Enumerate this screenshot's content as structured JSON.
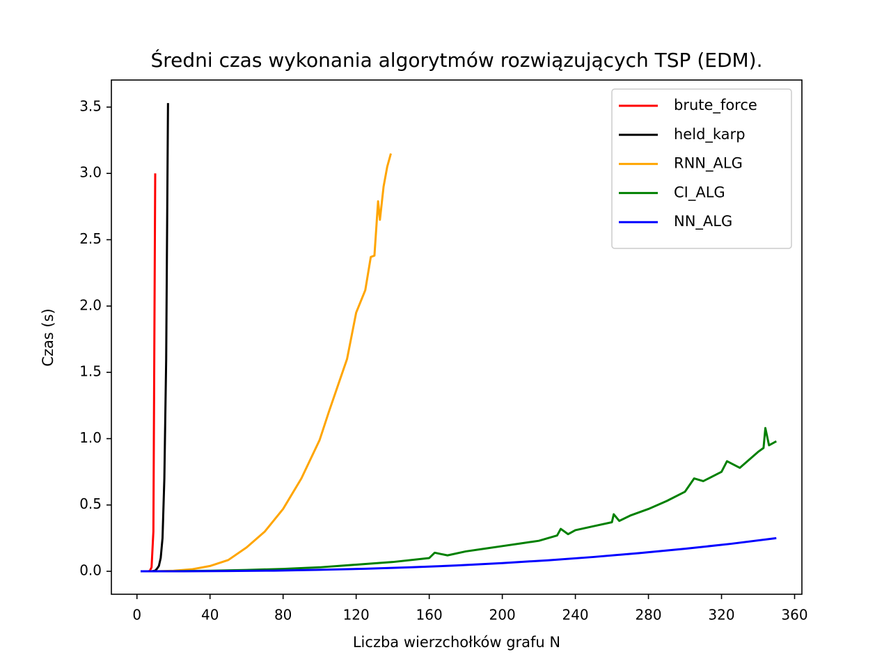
{
  "chart_data": {
    "type": "line",
    "title": "Średni czas wykonania algorytmów rozwiązujących TSP (EDM).",
    "xlabel": "Liczba wierzchołków grafu N",
    "ylabel": "Czas (s)",
    "xlim": [
      -14,
      364
    ],
    "ylim": [
      -0.173,
      3.704
    ],
    "xticks": [
      0,
      40,
      80,
      120,
      160,
      200,
      240,
      280,
      320,
      360
    ],
    "yticks": [
      {
        "value": 0,
        "label": "0.0"
      },
      0.5,
      {
        "value": 1,
        "label": "1.0"
      },
      1.5,
      {
        "value": 2,
        "label": "2.0"
      },
      2.5,
      {
        "value": 3,
        "label": "3.0"
      },
      3.5
    ],
    "legend": "upper right",
    "series": [
      {
        "name": "brute_force",
        "color": "#ff0000",
        "x": [
          2,
          3,
          4,
          5,
          6,
          7,
          8,
          9,
          10
        ],
        "values": [
          0,
          0,
          0,
          0,
          0,
          0.002,
          0.03,
          0.3,
          3.0
        ]
      },
      {
        "name": "held_karp",
        "color": "#000000",
        "x": [
          2,
          4,
          6,
          8,
          10,
          11,
          12,
          13,
          14,
          15,
          16,
          17
        ],
        "values": [
          0,
          0,
          0,
          0,
          0.005,
          0.02,
          0.04,
          0.1,
          0.25,
          0.7,
          1.6,
          3.53
        ]
      },
      {
        "name": "RNN_ALG",
        "color": "#ffa500",
        "x": [
          2,
          10,
          20,
          30,
          40,
          50,
          60,
          70,
          80,
          90,
          100,
          105,
          110,
          115,
          120,
          125,
          128,
          130,
          132,
          133,
          135,
          137,
          139
        ],
        "values": [
          0,
          0.0003,
          0.004,
          0.015,
          0.04,
          0.085,
          0.18,
          0.3,
          0.47,
          0.7,
          0.99,
          1.2,
          1.4,
          1.6,
          1.95,
          2.12,
          2.37,
          2.38,
          2.79,
          2.65,
          2.9,
          3.05,
          3.15
        ]
      },
      {
        "name": "CI_ALG",
        "color": "#008000",
        "x": [
          2,
          20,
          40,
          60,
          80,
          100,
          120,
          140,
          160,
          163,
          170,
          180,
          190,
          200,
          210,
          220,
          230,
          232,
          236,
          240,
          250,
          260,
          261,
          264,
          270,
          280,
          290,
          300,
          305,
          310,
          320,
          323,
          330,
          340,
          343,
          344,
          346,
          350
        ],
        "values": [
          0,
          0.001,
          0.004,
          0.01,
          0.018,
          0.03,
          0.05,
          0.07,
          0.1,
          0.14,
          0.12,
          0.15,
          0.17,
          0.19,
          0.21,
          0.23,
          0.27,
          0.32,
          0.28,
          0.31,
          0.34,
          0.37,
          0.43,
          0.38,
          0.42,
          0.47,
          0.53,
          0.6,
          0.7,
          0.68,
          0.75,
          0.83,
          0.78,
          0.9,
          0.93,
          1.08,
          0.95,
          0.98
        ]
      },
      {
        "name": "NN_ALG",
        "color": "#0000ff",
        "x": [
          2,
          25,
          50,
          75,
          100,
          125,
          150,
          175,
          200,
          225,
          250,
          275,
          300,
          325,
          350
        ],
        "values": [
          0,
          0.0003,
          0.002,
          0.005,
          0.011,
          0.019,
          0.03,
          0.044,
          0.062,
          0.083,
          0.108,
          0.137,
          0.17,
          0.207,
          0.25
        ]
      }
    ]
  }
}
